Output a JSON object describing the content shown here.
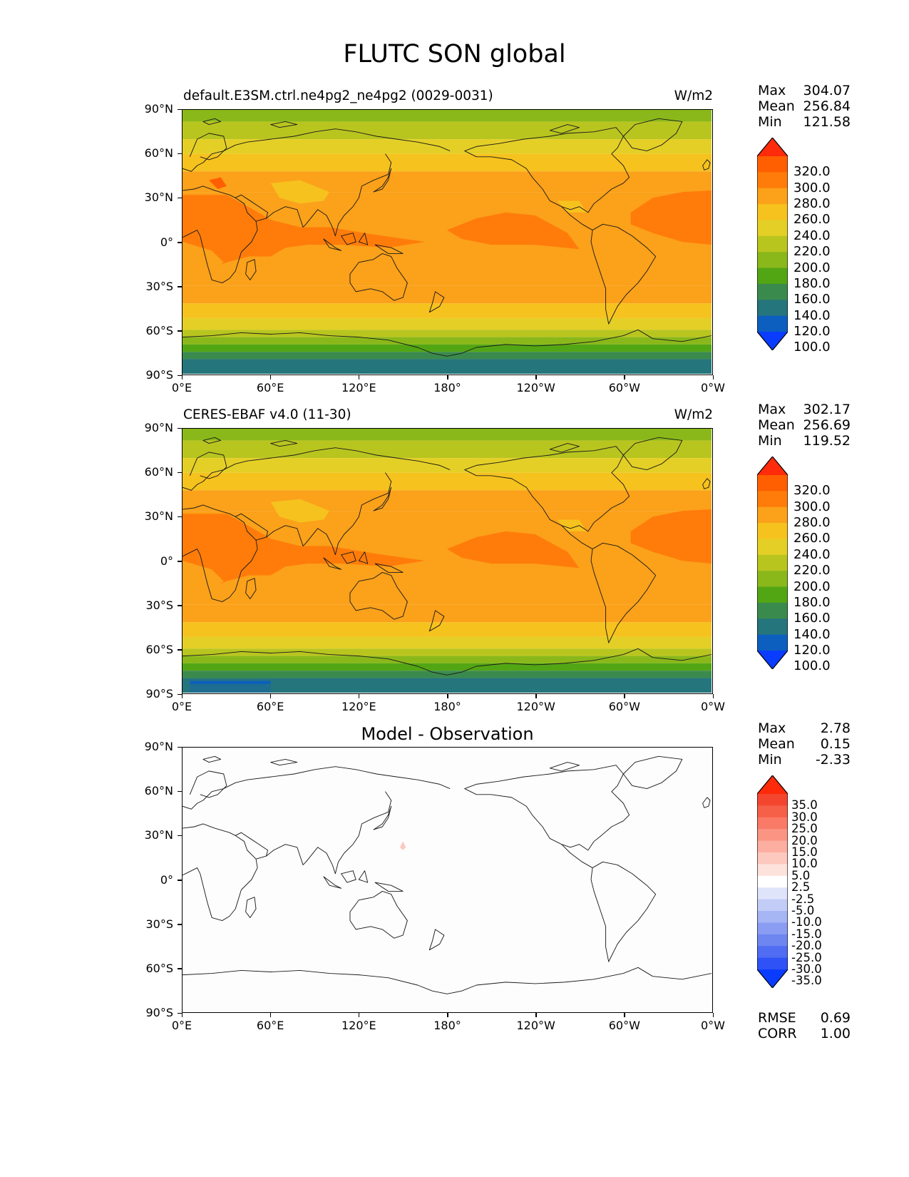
{
  "title": "FLUTC SON global",
  "x_ticks": [
    "0°E",
    "60°E",
    "120°E",
    "180°",
    "120°W",
    "60°W",
    "0°W"
  ],
  "y_ticks": [
    "90°N",
    "60°N",
    "30°N",
    "0°",
    "30°S",
    "60°S",
    "90°S"
  ],
  "panels": [
    {
      "id": "model",
      "label": "default.E3SM.ctrl.ne4pg2_ne4pg2 (0029-0031)",
      "units": "W/m2",
      "stats": {
        "max_label": "Max",
        "max": "304.07",
        "mean_label": "Mean",
        "mean": "256.84",
        "min_label": "Min",
        "min": "121.58"
      },
      "colorbar": {
        "labels": [
          "320.0",
          "300.0",
          "280.0",
          "260.0",
          "240.0",
          "220.0",
          "200.0",
          "180.0",
          "160.0",
          "140.0",
          "120.0",
          "100.0"
        ],
        "colors": [
          "#ff2b0a",
          "#ff5f00",
          "#ff7c0a",
          "#fba11a",
          "#f6c21e",
          "#e4cf26",
          "#b9c51f",
          "#8ab81a",
          "#52a614",
          "#3b8a4d",
          "#25757c",
          "#0c5fbf",
          "#0a3cff"
        ]
      }
    },
    {
      "id": "obs",
      "label": "CERES-EBAF v4.0 (11-30)",
      "units": "W/m2",
      "stats": {
        "max_label": "Max",
        "max": "302.17",
        "mean_label": "Mean",
        "mean": "256.69",
        "min_label": "Min",
        "min": "119.52"
      },
      "colorbar": {
        "labels": [
          "320.0",
          "300.0",
          "280.0",
          "260.0",
          "240.0",
          "220.0",
          "200.0",
          "180.0",
          "160.0",
          "140.0",
          "120.0",
          "100.0"
        ],
        "colors": [
          "#ff2b0a",
          "#ff5f00",
          "#ff7c0a",
          "#fba11a",
          "#f6c21e",
          "#e4cf26",
          "#b9c51f",
          "#8ab81a",
          "#52a614",
          "#3b8a4d",
          "#25757c",
          "#0c5fbf",
          "#0a3cff"
        ]
      }
    },
    {
      "id": "diff",
      "title": "Model - Observation",
      "stats": {
        "max_label": "Max",
        "max": "2.78",
        "mean_label": "Mean",
        "mean": "0.15",
        "min_label": "Min",
        "min": "-2.33"
      },
      "colorbar": {
        "labels": [
          "35.0",
          "30.0",
          "25.0",
          "20.0",
          "15.0",
          "10.0",
          "5.0",
          "2.5",
          "-2.5",
          "-5.0",
          "-10.0",
          "-15.0",
          "-20.0",
          "-25.0",
          "-30.0",
          "-35.0"
        ],
        "colors": [
          "#ff2a0a",
          "#f4462f",
          "#f76048",
          "#fa7a68",
          "#fb9583",
          "#fcaea0",
          "#fdc8bd",
          "#fde2dc",
          "#ffffff",
          "#dfe4fb",
          "#c2ccf7",
          "#a6b5f4",
          "#8a9df2",
          "#6e86f0",
          "#4f6cf2",
          "#2f52f6",
          "#0a3cff"
        ]
      },
      "rmse_label": "RMSE",
      "rmse": "0.69",
      "corr_label": "CORR",
      "corr": "1.00"
    }
  ],
  "chart_data": [
    {
      "type": "heatmap",
      "title": "default.E3SM.ctrl.ne4pg2_ne4pg2 (0029-0031)",
      "units": "W/m2",
      "lon_range": [
        0,
        360
      ],
      "lat_range": [
        -90,
        90
      ],
      "levels": [
        100,
        120,
        140,
        160,
        180,
        200,
        220,
        240,
        260,
        280,
        300,
        320
      ],
      "max": 304.07,
      "mean": 256.84,
      "min": 121.58
    },
    {
      "type": "heatmap",
      "title": "CERES-EBAF v4.0 (11-30)",
      "units": "W/m2",
      "lon_range": [
        0,
        360
      ],
      "lat_range": [
        -90,
        90
      ],
      "levels": [
        100,
        120,
        140,
        160,
        180,
        200,
        220,
        240,
        260,
        280,
        300,
        320
      ],
      "max": 302.17,
      "mean": 256.69,
      "min": 119.52
    },
    {
      "type": "heatmap",
      "title": "Model - Observation",
      "lon_range": [
        0,
        360
      ],
      "lat_range": [
        -90,
        90
      ],
      "levels": [
        -35,
        -30,
        -25,
        -20,
        -15,
        -10,
        -5,
        -2.5,
        2.5,
        5,
        10,
        15,
        20,
        25,
        30,
        35
      ],
      "max": 2.78,
      "mean": 0.15,
      "min": -2.33,
      "rmse": 0.69,
      "corr": 1.0
    }
  ]
}
